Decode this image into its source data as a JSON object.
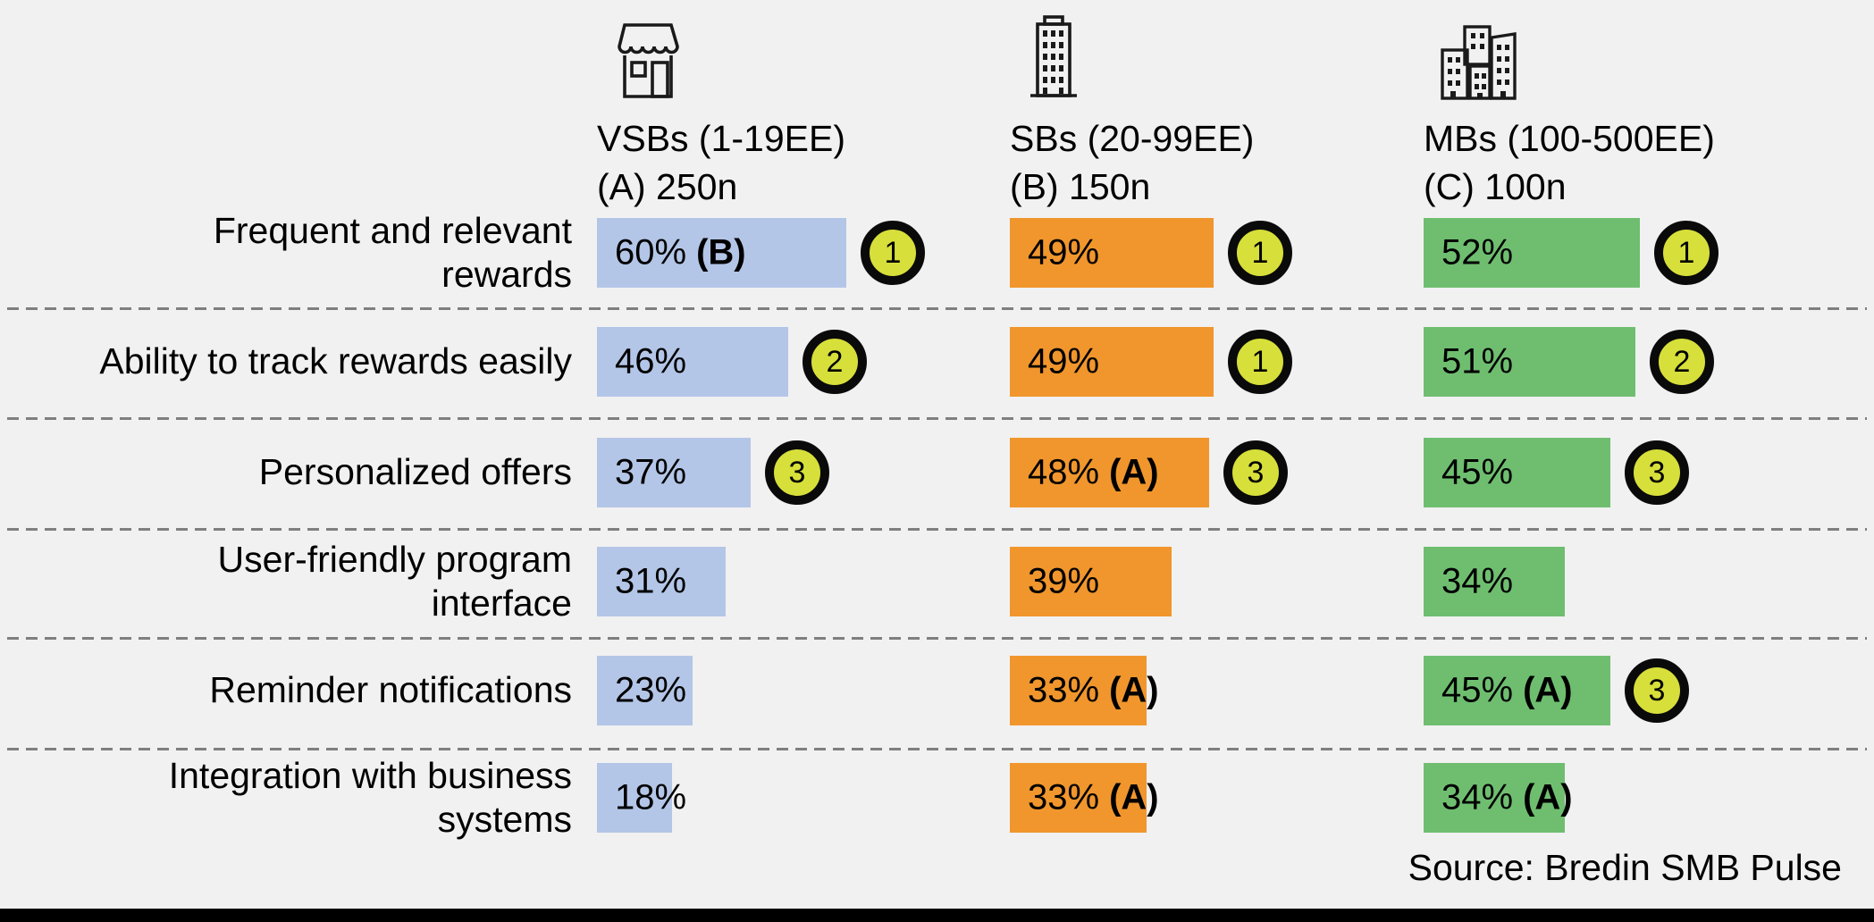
{
  "page": {
    "background": "#F1F1F1",
    "footer_bar_color": "#000000",
    "separator_color": "#7F7F7F",
    "source_note": "Source: Bredin SMB Pulse"
  },
  "rank_badge": {
    "fill": "#D7DF3A",
    "border": "#0A0A0A"
  },
  "columns": [
    {
      "icon": "storefront-icon",
      "line1": "VSBs (1-19EE)",
      "line2": "(A) 250n",
      "bar_color": "#B4C6E7"
    },
    {
      "icon": "office-building-icon",
      "line1": "SBs (20-99EE)",
      "line2": "(B) 150n",
      "bar_color": "#F0962D"
    },
    {
      "icon": "city-buildings-icon",
      "line1": "MBs (100-500EE)",
      "line2": "(C) 100n",
      "bar_color": "#6FBE70"
    }
  ],
  "chart_data": {
    "type": "bar",
    "orientation": "horizontal",
    "unit": "%",
    "xlim": [
      0,
      100
    ],
    "legend_position": "top",
    "grid": false,
    "categories": [
      "Frequent and relevant\nrewards",
      "Ability to track rewards easily",
      "Personalized offers",
      "User-friendly program\ninterface",
      "Reminder notifications",
      "Integration with business\nsystems"
    ],
    "series": [
      {
        "name": "VSBs (1-19EE) (A) 250n",
        "color": "#B4C6E7",
        "points": [
          {
            "value": 60,
            "pct": "60%",
            "ref": "(B)",
            "rank": "1"
          },
          {
            "value": 46,
            "pct": "46%",
            "ref": "",
            "rank": "2"
          },
          {
            "value": 37,
            "pct": "37%",
            "ref": "",
            "rank": "3"
          },
          {
            "value": 31,
            "pct": "31%",
            "ref": "",
            "rank": ""
          },
          {
            "value": 23,
            "pct": "23%",
            "ref": "",
            "rank": ""
          },
          {
            "value": 18,
            "pct": "18%",
            "ref": "",
            "rank": ""
          }
        ]
      },
      {
        "name": "SBs (20-99EE) (B) 150n",
        "color": "#F0962D",
        "points": [
          {
            "value": 49,
            "pct": "49%",
            "ref": "",
            "rank": "1"
          },
          {
            "value": 49,
            "pct": "49%",
            "ref": "",
            "rank": "1"
          },
          {
            "value": 48,
            "pct": "48%",
            "ref": "(A)",
            "rank": "3"
          },
          {
            "value": 39,
            "pct": "39%",
            "ref": "",
            "rank": ""
          },
          {
            "value": 33,
            "pct": "33%",
            "ref": "(A)",
            "rank": ""
          },
          {
            "value": 33,
            "pct": "33%",
            "ref": "(A)",
            "rank": ""
          }
        ]
      },
      {
        "name": "MBs (100-500EE) (C) 100n",
        "color": "#6FBE70",
        "points": [
          {
            "value": 52,
            "pct": "52%",
            "ref": "",
            "rank": "1"
          },
          {
            "value": 51,
            "pct": "51%",
            "ref": "",
            "rank": "2"
          },
          {
            "value": 45,
            "pct": "45%",
            "ref": "",
            "rank": "3"
          },
          {
            "value": 34,
            "pct": "34%",
            "ref": "",
            "rank": ""
          },
          {
            "value": 45,
            "pct": "45%",
            "ref": "(A)",
            "rank": "3"
          },
          {
            "value": 34,
            "pct": "34%",
            "ref": "(A)",
            "rank": ""
          }
        ]
      }
    ]
  }
}
